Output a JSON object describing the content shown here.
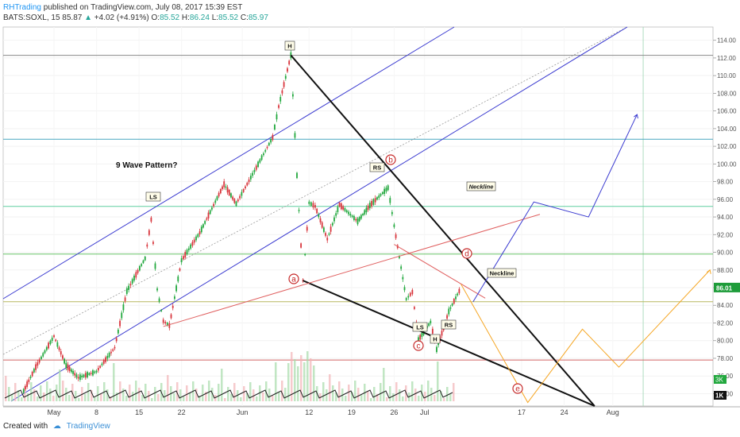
{
  "header": {
    "author": "RHTrading",
    "published": "published on TradingView.com, July 08, 2017 15:39 EST",
    "symbol": "BATS:SOXL, 15",
    "last": "85.87",
    "change": "+4.02 (+4.91%)",
    "o_label": "O:",
    "o_val": "85.52",
    "h_label": "H:",
    "h_val": "86.24",
    "l_label": "L:",
    "l_val": "85.52",
    "c_label": "C:",
    "c_val": "85.97"
  },
  "footer": {
    "created_with": "Created with",
    "brand": "TradingView"
  },
  "chart_data": {
    "type": "line",
    "symbol": "BATS:SOXL",
    "interval": "15",
    "x_ticks": [
      "May",
      "8",
      "15",
      "22",
      "Jun",
      "12",
      "19",
      "26",
      "Jul",
      "17",
      "24",
      "Aug"
    ],
    "y_ticks": [
      74,
      76,
      78,
      80,
      82,
      84,
      86,
      88,
      90,
      92,
      94,
      96,
      98,
      100,
      102,
      104,
      106,
      108,
      110,
      112,
      114
    ],
    "ylim": [
      72.6,
      115.5
    ],
    "current_price": "86.01",
    "volume_badge": "3K",
    "scale_badge": "1K",
    "price_path": [
      [
        "Apr 26",
        74.3
      ],
      [
        "Apr 28",
        77.0
      ],
      [
        "May 1",
        80.5
      ],
      [
        "May 3",
        77.2
      ],
      [
        "May 5",
        75.8
      ],
      [
        "May 8",
        76.5
      ],
      [
        "May 11",
        79.2
      ],
      [
        "May 13",
        85.6
      ],
      [
        "May 16",
        89.3
      ],
      [
        "May 17",
        93.7
      ],
      [
        "May 18",
        85.8
      ],
      [
        "May 19",
        82.2
      ],
      [
        "May 20",
        81.7
      ],
      [
        "May 22",
        89.1
      ],
      [
        "May 25",
        92.2
      ],
      [
        "May 29",
        97.7
      ],
      [
        "May 31",
        95.5
      ],
      [
        "Jun 3",
        99.2
      ],
      [
        "Jun 6",
        103.0
      ],
      [
        "Jun 7",
        106.5
      ],
      [
        "Jun 9",
        112.3
      ],
      [
        "Jun 10",
        98.7
      ],
      [
        "Jun 11",
        86.8
      ],
      [
        "Jun 12",
        95.6
      ],
      [
        "Jun 13",
        95.2
      ],
      [
        "Jun 15",
        91.5
      ],
      [
        "Jun 17",
        95.4
      ],
      [
        "Jun 20",
        93.5
      ],
      [
        "Jun 22",
        95.3
      ],
      [
        "Jun 25",
        97.3
      ],
      [
        "Jun 26",
        93.0
      ],
      [
        "Jun 28",
        84.7
      ],
      [
        "Jun 29",
        85.5
      ],
      [
        "Jun 30",
        80.1
      ],
      [
        "Jul 2",
        82.1
      ],
      [
        "Jul 3",
        79.0
      ],
      [
        "Jul 5",
        83.3
      ],
      [
        "Jul 7",
        86.0
      ]
    ],
    "projections": [
      {
        "name": "blue",
        "color": "#3a3ad0",
        "points": [
          [
            "Jul 9",
            84.4
          ],
          [
            "Jul 19",
            95.7
          ],
          [
            "Jul 28",
            94.0
          ],
          [
            "Aug 5",
            105.6
          ]
        ]
      },
      {
        "name": "orange",
        "color": "#f5a623",
        "points": [
          [
            "Jul 7",
            86.4
          ],
          [
            "Jul 18",
            73.0
          ],
          [
            "Jul 27",
            81.3
          ],
          [
            "Aug 2",
            77.0
          ],
          [
            "Aug 17",
            88.0
          ]
        ]
      }
    ],
    "horizontal_levels": [
      {
        "price": 112.3,
        "color": "#888888"
      },
      {
        "price": 102.8,
        "color": "#4aa8c0"
      },
      {
        "price": 95.2,
        "color": "#5fcf9f"
      },
      {
        "price": 89.8,
        "color": "#66c266"
      },
      {
        "price": 84.4,
        "color": "#b8b860"
      },
      {
        "price": 77.8,
        "color": "#d26464"
      }
    ],
    "annotations": {
      "pattern_title": "9 Wave Pattern?",
      "neckline_1": "Neckline",
      "neckline_2": "Neckline",
      "ls_1": "LS",
      "h_1": "H",
      "rs_1": "RS",
      "ls_2": "LS",
      "h_2": "H",
      "rs_2": "RS",
      "wave_a": "a",
      "wave_b": "b",
      "wave_c": "c",
      "wave_d": "d",
      "wave_e": "e"
    }
  },
  "colors": {
    "bull": "#22a83e",
    "bear": "#d8353c",
    "channel": "#3a3ad0",
    "wedge": "#111111",
    "neckline": "#e06060",
    "price_badge": "#1e9c3a"
  }
}
